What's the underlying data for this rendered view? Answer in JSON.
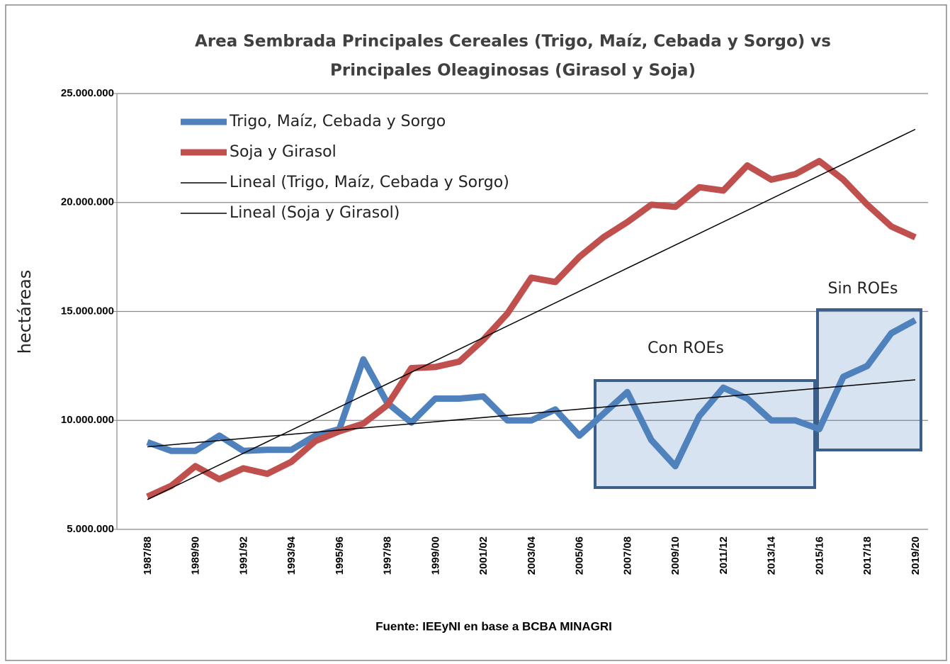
{
  "chart_data": {
    "type": "line",
    "title": [
      "Area Sembrada Principales Cereales (Trigo,  Maíz, Cebada y Sorgo) vs",
      "Principales Oleaginosas (Girasol y Soja)"
    ],
    "y_label": "hectáreas",
    "source": "Fuente: IEEyNI en base a BCBA MINAGRI",
    "annotations": [
      "Con ROEs",
      "Sin ROEs"
    ],
    "categories": [
      "1987/88",
      null,
      "1989/90",
      null,
      "1991/92",
      null,
      "1993/94",
      null,
      "1995/96",
      null,
      "1997/98",
      null,
      "1999/00",
      null,
      "2001/02",
      null,
      "2003/04",
      null,
      "2005/06",
      null,
      "2007/08",
      null,
      "2009/10",
      null,
      "2011/12",
      null,
      "2013/14",
      null,
      "2015/16",
      null,
      "2017/18",
      null,
      "2019/20"
    ],
    "series": [
      {
        "name": "Trigo, Maíz, Cebada y Sorgo",
        "color": "#4f81bd",
        "values": [
          9000000,
          8600000,
          8600000,
          9300000,
          8600000,
          8650000,
          8650000,
          9300000,
          9600000,
          12800000,
          10800000,
          9900000,
          11000000,
          11000000,
          11100000,
          10000000,
          10000000,
          10500000,
          9300000,
          10300000,
          11300000,
          9100000,
          7900000,
          10200000,
          11500000,
          11000000,
          10000000,
          10000000,
          9600000,
          12000000,
          12500000,
          14000000,
          14600000
        ],
        "trendline": {
          "name": "Lineal (Trigo, Maíz, Cebada y Sorgo)",
          "type": "linear",
          "color": "#000000"
        }
      },
      {
        "name": "Soja y Girasol",
        "color": "#c0504d",
        "values": [
          6500000,
          7000000,
          7900000,
          7300000,
          7800000,
          7550000,
          8100000,
          9050000,
          9500000,
          9850000,
          10700000,
          12400000,
          12450000,
          12700000,
          13700000,
          14900000,
          16550000,
          16350000,
          17500000,
          18400000,
          19100000,
          19900000,
          19800000,
          20700000,
          20550000,
          21700000,
          21050000,
          21300000,
          21900000,
          21050000,
          19900000,
          18900000,
          18400000
        ],
        "trendline": {
          "name": "Lineal (Soja y Girasol)",
          "type": "linear",
          "color": "#000000"
        }
      }
    ],
    "ylim": [
      5000000,
      25000000
    ],
    "yticks": [
      {
        "value": 5000000,
        "label": "5.000.000"
      },
      {
        "value": 10000000,
        "label": "10.000.000"
      },
      {
        "value": 15000000,
        "label": "15.000.000"
      },
      {
        "value": 20000000,
        "label": "20.000.000"
      },
      {
        "value": 25000000,
        "label": "25.000.000"
      }
    ],
    "grid": true,
    "legend": "upper left"
  }
}
